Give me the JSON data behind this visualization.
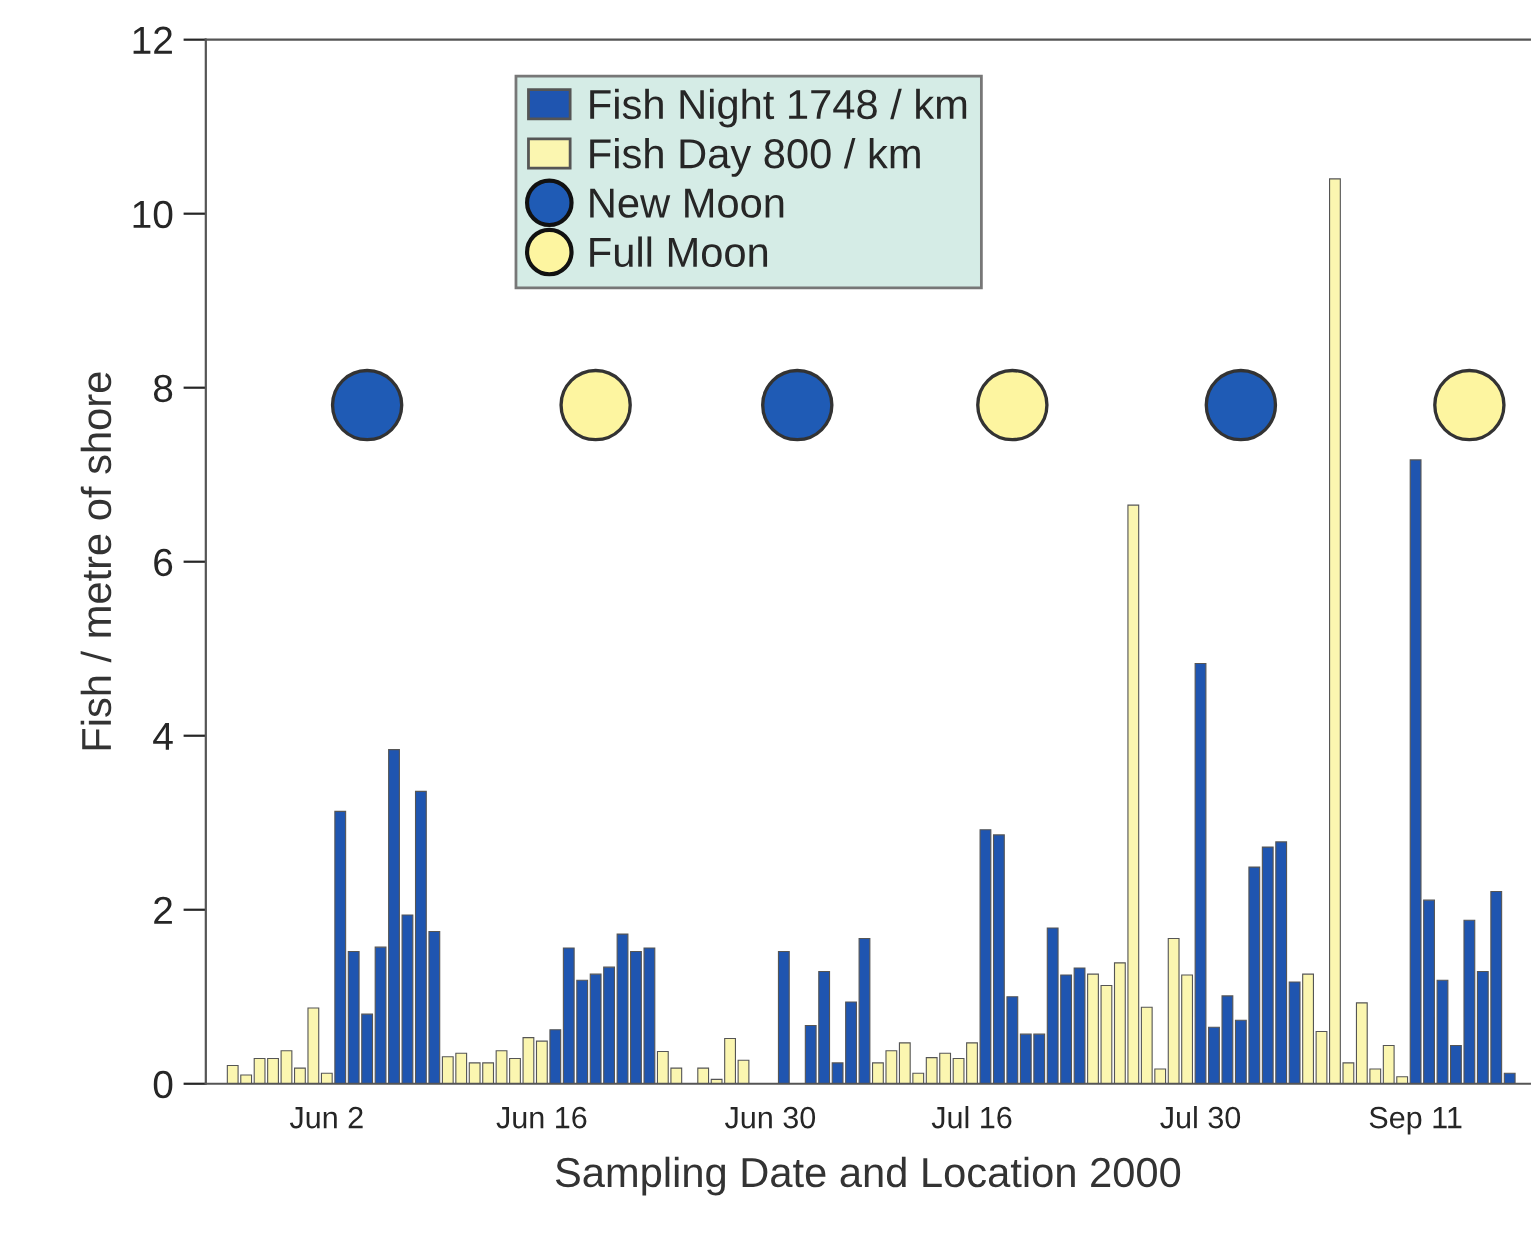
{
  "chart_data": {
    "type": "bar",
    "xlabel": "Sampling Date and Location 2000",
    "ylabel": "Fish / metre of shore",
    "ylim": [
      0,
      12
    ],
    "yticks": [
      0,
      2,
      4,
      6,
      8,
      10,
      12
    ],
    "grid": false,
    "legend": "top",
    "categories": [
      null,
      null,
      null,
      null,
      null,
      null,
      null,
      "Jun 2",
      null,
      null,
      null,
      null,
      null,
      null,
      null,
      null,
      null,
      null,
      null,
      null,
      null,
      null,
      null,
      "Jun 16",
      null,
      null,
      null,
      null,
      null,
      null,
      null,
      null,
      null,
      null,
      null,
      null,
      null,
      null,
      null,
      null,
      "Jun 30",
      null,
      null,
      null,
      null,
      null,
      null,
      null,
      null,
      null,
      null,
      null,
      null,
      null,
      null,
      "Jul 16",
      null,
      null,
      null,
      null,
      null,
      null,
      null,
      null,
      null,
      null,
      null,
      null,
      null,
      null,
      null,
      null,
      "Jul 30",
      null,
      null,
      null,
      null,
      null,
      null,
      null,
      null,
      null,
      null,
      null,
      null,
      null,
      null,
      null,
      "Sep 11",
      null,
      null,
      null,
      null,
      null,
      null,
      null
    ],
    "series": [
      {
        "name": "Fish Night 1748 / km",
        "color": "#1f55b0",
        "values": [
          null,
          null,
          null,
          null,
          null,
          null,
          null,
          null,
          3.13,
          1.52,
          0.8,
          1.57,
          3.84,
          1.94,
          3.36,
          1.75,
          null,
          null,
          null,
          null,
          null,
          null,
          null,
          null,
          0.62,
          1.56,
          1.19,
          1.26,
          1.34,
          1.72,
          1.52,
          1.56,
          null,
          null,
          null,
          null,
          null,
          null,
          null,
          null,
          null,
          1.52,
          null,
          0.67,
          1.29,
          0.24,
          0.94,
          1.67,
          null,
          null,
          null,
          null,
          null,
          null,
          null,
          null,
          2.92,
          2.86,
          1.0,
          0.57,
          0.57,
          1.79,
          1.25,
          1.33,
          null,
          null,
          null,
          null,
          null,
          null,
          null,
          null,
          4.83,
          0.65,
          1.01,
          0.73,
          2.49,
          2.72,
          2.78,
          1.17,
          null,
          null,
          null,
          null,
          null,
          null,
          null,
          null,
          7.17,
          2.11,
          1.19,
          0.44,
          1.88,
          1.29,
          2.21,
          0.12
        ]
      },
      {
        "name": "Fish Day 800 / km",
        "color": "#fbf6b0",
        "values": [
          0.21,
          0.1,
          0.29,
          0.29,
          0.38,
          0.18,
          0.87,
          0.12,
          null,
          null,
          null,
          null,
          null,
          null,
          null,
          null,
          0.31,
          0.35,
          0.24,
          0.24,
          0.38,
          0.29,
          0.53,
          0.49,
          null,
          null,
          null,
          null,
          null,
          null,
          null,
          null,
          0.37,
          0.18,
          null,
          0.18,
          0.05,
          0.52,
          0.27,
          null,
          null,
          null,
          null,
          null,
          null,
          null,
          null,
          null,
          0.24,
          0.38,
          0.47,
          0.12,
          0.3,
          0.35,
          0.29,
          0.47,
          null,
          null,
          null,
          null,
          null,
          null,
          null,
          null,
          1.26,
          1.13,
          1.39,
          6.65,
          0.88,
          0.17,
          1.67,
          1.25,
          null,
          null,
          null,
          null,
          null,
          null,
          null,
          null,
          1.26,
          0.6,
          10.4,
          0.24,
          0.93,
          0.17,
          0.44,
          0.08,
          null,
          null,
          null,
          null,
          null,
          null,
          null,
          null
        ]
      },
      {
        "name": "New Moon",
        "type": "scatter",
        "color": "#1f5bb5",
        "marker": "circle",
        "values": [
          null,
          null,
          null,
          null,
          null,
          null,
          null,
          null,
          null,
          null,
          7.8,
          null,
          null,
          null,
          null,
          null,
          null,
          null,
          null,
          null,
          null,
          null,
          null,
          null,
          null,
          null,
          null,
          null,
          null,
          null,
          null,
          null,
          null,
          null,
          null,
          null,
          null,
          null,
          null,
          null,
          null,
          null,
          7.8,
          null,
          null,
          null,
          null,
          null,
          null,
          null,
          null,
          null,
          null,
          null,
          null,
          null,
          null,
          null,
          null,
          null,
          null,
          null,
          null,
          null,
          null,
          null,
          null,
          null,
          null,
          null,
          null,
          null,
          null,
          null,
          null,
          7.8,
          null,
          null,
          null,
          null,
          null,
          null,
          null,
          null,
          null,
          null,
          null,
          null,
          null,
          null,
          null,
          null,
          null,
          null,
          null,
          null
        ]
      },
      {
        "name": "Full Moon",
        "type": "scatter",
        "color": "#fdf5a0",
        "marker": "circle",
        "values": [
          null,
          null,
          null,
          null,
          null,
          null,
          null,
          null,
          null,
          null,
          null,
          null,
          null,
          null,
          null,
          null,
          null,
          null,
          null,
          null,
          null,
          null,
          null,
          null,
          null,
          null,
          null,
          7.8,
          null,
          null,
          null,
          null,
          null,
          null,
          null,
          null,
          null,
          null,
          null,
          null,
          null,
          null,
          null,
          null,
          null,
          null,
          null,
          null,
          null,
          null,
          null,
          null,
          null,
          null,
          null,
          null,
          null,
          null,
          7.8,
          null,
          null,
          null,
          null,
          null,
          null,
          null,
          null,
          null,
          null,
          null,
          null,
          null,
          null,
          null,
          null,
          null,
          null,
          null,
          null,
          null,
          null,
          null,
          null,
          null,
          null,
          null,
          null,
          null,
          null,
          null,
          null,
          null,
          7.8,
          null,
          null,
          null
        ]
      }
    ]
  }
}
